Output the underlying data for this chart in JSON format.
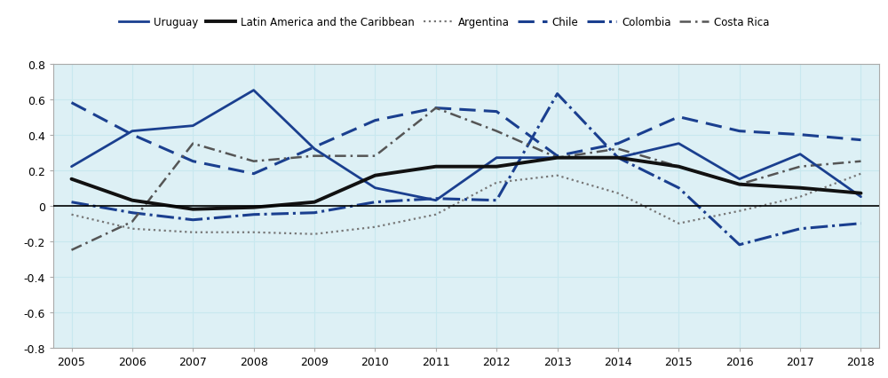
{
  "years": [
    2005,
    2006,
    2007,
    2008,
    2009,
    2010,
    2011,
    2012,
    2013,
    2014,
    2015,
    2016,
    2017,
    2018
  ],
  "uruguay": [
    0.22,
    0.42,
    0.45,
    0.65,
    0.32,
    0.1,
    0.03,
    0.27,
    0.27,
    0.27,
    0.35,
    0.15,
    0.29,
    0.05
  ],
  "lac": [
    0.15,
    0.03,
    -0.02,
    -0.01,
    0.02,
    0.17,
    0.22,
    0.22,
    0.27,
    0.27,
    0.22,
    0.12,
    0.1,
    0.07
  ],
  "argentina": [
    -0.05,
    -0.13,
    -0.15,
    -0.15,
    -0.16,
    -0.12,
    -0.05,
    0.13,
    0.17,
    0.07,
    -0.1,
    -0.03,
    0.05,
    0.18
  ],
  "chile": [
    0.58,
    0.4,
    0.25,
    0.18,
    0.33,
    0.48,
    0.55,
    0.53,
    0.28,
    0.35,
    0.5,
    0.42,
    0.4,
    0.37
  ],
  "colombia": [
    0.02,
    -0.04,
    -0.08,
    -0.05,
    -0.04,
    0.02,
    0.04,
    0.03,
    0.63,
    0.27,
    0.1,
    -0.22,
    -0.13,
    -0.1
  ],
  "costa_rica": [
    -0.25,
    -0.09,
    0.35,
    0.25,
    0.28,
    0.28,
    0.55,
    0.42,
    0.27,
    0.32,
    0.22,
    0.12,
    0.22,
    0.25
  ],
  "plot_bg": "#ddf0f5",
  "fig_bg": "#ffffff",
  "legend_bg": "#d0dfe6",
  "uruguay_color": "#1a3f8f",
  "lac_color": "#111111",
  "argentina_color": "#777777",
  "chile_color": "#1a3f8f",
  "colombia_color": "#1a3f8f",
  "costa_rica_color": "#555555",
  "ylim": [
    -0.8,
    0.8
  ],
  "yticks": [
    -0.8,
    -0.6,
    -0.4,
    -0.2,
    0.0,
    0.2,
    0.4,
    0.6,
    0.8
  ],
  "grid_color": "#c8e8ef",
  "spine_color": "#aaaaaa"
}
